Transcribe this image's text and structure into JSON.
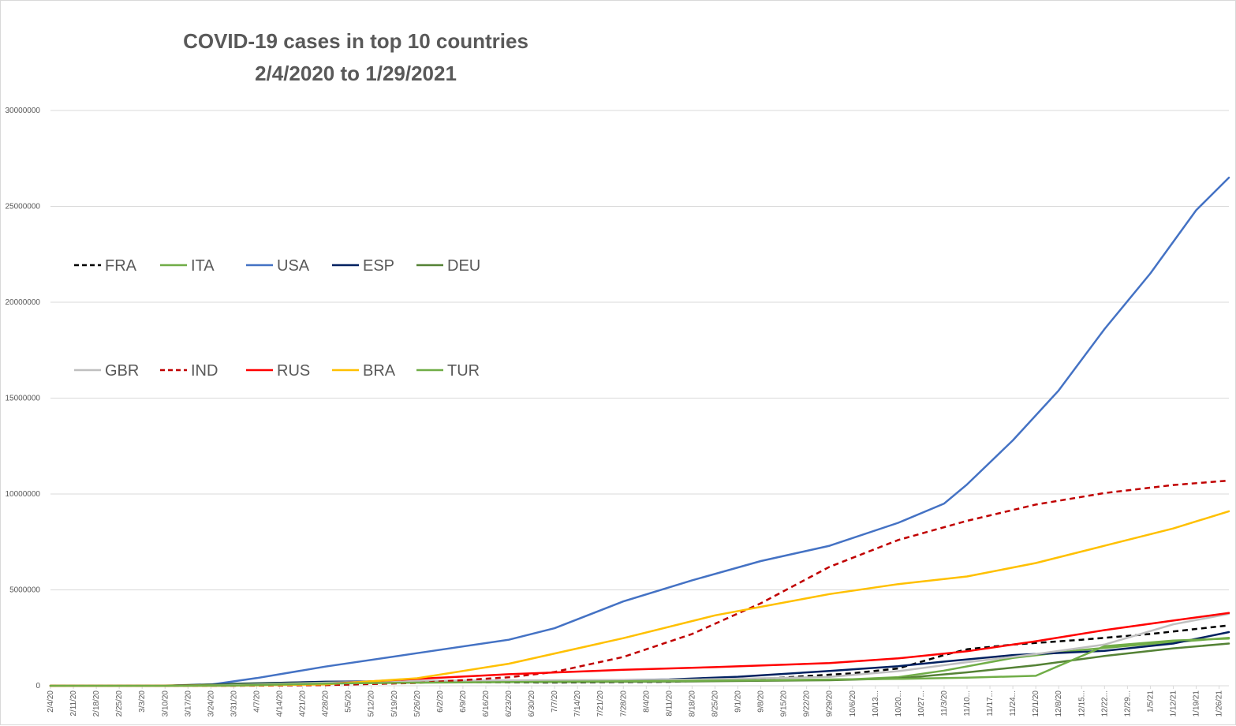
{
  "chart_data": {
    "type": "line",
    "title": [
      "COVID-19 cases in top 10 countries",
      "2/4/2020 to 1/29/2021"
    ],
    "xlabel": "",
    "ylabel": "",
    "ylim": [
      0,
      30000000
    ],
    "y_ticks": [
      0,
      5000000,
      10000000,
      15000000,
      20000000,
      25000000,
      30000000
    ],
    "y_tick_labels": [
      "0",
      "5000000",
      "10000000",
      "15000000",
      "20000000",
      "25000000",
      "30000000"
    ],
    "grid": "horizontal",
    "x_start": "2/4/20",
    "x_end": "1/29/21",
    "x_tick_labels": [
      "2/4/20",
      "2/11/20",
      "2/18/20",
      "2/25/20",
      "3/3/20",
      "3/10/20",
      "3/17/20",
      "3/24/20",
      "3/31/20",
      "4/7/20",
      "4/14/20",
      "4/21/20",
      "4/28/20",
      "5/5/20",
      "5/12/20",
      "5/19/20",
      "5/26/20",
      "6/2/20",
      "6/9/20",
      "6/16/20",
      "6/23/20",
      "6/30/20",
      "7/7/20",
      "7/14/20",
      "7/21/20",
      "7/28/20",
      "8/4/20",
      "8/11/20",
      "8/18/20",
      "8/25/20",
      "9/1/20",
      "9/8/20",
      "9/15/20",
      "9/22/20",
      "9/29/20",
      "10/6/20",
      "10/13...",
      "10/20...",
      "10/27...",
      "11/3/20",
      "11/10...",
      "11/17...",
      "11/24...",
      "12/1/20",
      "12/8/20",
      "12/15...",
      "12/22...",
      "12/29...",
      "1/5/21",
      "1/12/21",
      "1/19/21",
      "1/26/21"
    ],
    "legend_placement": "left, two rows",
    "legend_rows": [
      [
        "FRA",
        "ITA",
        "USA",
        "ESP",
        "DEU"
      ],
      [
        "GBR",
        "IND",
        "RUS",
        "BRA",
        "TUR"
      ]
    ],
    "series": [
      {
        "name": "FRA",
        "color": "#000000",
        "dashed": true,
        "x": [
          "2/4/20",
          "3/10/20",
          "3/31/20",
          "4/28/20",
          "6/2/20",
          "7/7/20",
          "8/11/20",
          "9/8/20",
          "10/6/20",
          "10/20/20",
          "11/3/20",
          "11/10/20",
          "11/24/20",
          "12/15/20",
          "1/5/21",
          "1/29/21"
        ],
        "values": [
          0,
          1800,
          52000,
          169000,
          189000,
          170000,
          205000,
          360000,
          650000,
          900000,
          1600000,
          1900000,
          2150000,
          2400000,
          2700000,
          3150000
        ]
      },
      {
        "name": "ITA",
        "color": "#70ad47",
        "dashed": false,
        "x": [
          "2/4/20",
          "2/25/20",
          "3/10/20",
          "3/31/20",
          "4/28/20",
          "5/26/20",
          "6/30/20",
          "8/4/20",
          "9/8/20",
          "10/6/20",
          "10/20/20",
          "11/3/20",
          "11/24/20",
          "12/15/20",
          "1/5/21",
          "1/29/21"
        ],
        "values": [
          0,
          300,
          10000,
          106000,
          201000,
          231000,
          241000,
          249000,
          280000,
          336000,
          450000,
          790000,
          1450000,
          1870000,
          2180000,
          2500000
        ]
      },
      {
        "name": "USA",
        "color": "#4472c4",
        "dashed": false,
        "x": [
          "2/4/20",
          "3/10/20",
          "3/24/20",
          "4/7/20",
          "4/28/20",
          "5/26/20",
          "6/23/20",
          "7/7/20",
          "7/28/20",
          "8/18/20",
          "9/8/20",
          "9/29/20",
          "10/20/20",
          "11/3/20",
          "11/10/20",
          "11/24/20",
          "12/8/20",
          "12/22/20",
          "1/5/21",
          "1/19/21",
          "1/29/21"
        ],
        "values": [
          11,
          1000,
          60000,
          400000,
          1000000,
          1700000,
          2400000,
          3000000,
          4400000,
          5500000,
          6500000,
          7300000,
          8500000,
          9500000,
          10500000,
          12800000,
          15400000,
          18600000,
          21500000,
          24800000,
          26500000
        ]
      },
      {
        "name": "ESP",
        "color": "#002060",
        "dashed": false,
        "x": [
          "2/4/20",
          "3/10/20",
          "3/31/20",
          "4/28/20",
          "5/26/20",
          "7/7/20",
          "8/11/20",
          "9/1/20",
          "9/29/20",
          "10/20/20",
          "11/3/20",
          "11/24/20",
          "12/22/20",
          "1/12/21",
          "1/29/21"
        ],
        "values": [
          0,
          1700,
          95000,
          210000,
          237000,
          252000,
          330000,
          470000,
          770000,
          1020000,
          1260000,
          1600000,
          1820000,
          2200000,
          2800000
        ]
      },
      {
        "name": "DEU",
        "color": "#548235",
        "dashed": false,
        "x": [
          "2/4/20",
          "3/10/20",
          "3/31/20",
          "4/28/20",
          "5/26/20",
          "7/7/20",
          "8/18/20",
          "9/29/20",
          "10/20/20",
          "11/10/20",
          "12/1/20",
          "12/22/20",
          "1/12/21",
          "1/29/21"
        ],
        "values": [
          12,
          1200,
          70000,
          160000,
          180000,
          197000,
          228000,
          290000,
          380000,
          700000,
          1070000,
          1550000,
          1950000,
          2200000
        ]
      },
      {
        "name": "GBR",
        "color": "#bfbfbf",
        "dashed": false,
        "x": [
          "2/4/20",
          "3/10/20",
          "3/31/20",
          "4/28/20",
          "5/26/20",
          "7/7/20",
          "8/18/20",
          "9/29/20",
          "10/20/20",
          "11/10/20",
          "12/1/20",
          "12/22/20",
          "1/12/21",
          "1/29/21"
        ],
        "values": [
          2,
          370,
          25000,
          160000,
          265000,
          287000,
          320000,
          460000,
          760000,
          1230000,
          1650000,
          2150000,
          3200000,
          3750000
        ]
      },
      {
        "name": "IND",
        "color": "#c00000",
        "dashed": true,
        "x": [
          "2/4/20",
          "3/31/20",
          "4/28/20",
          "5/26/20",
          "6/23/20",
          "7/7/20",
          "7/28/20",
          "8/18/20",
          "9/8/20",
          "9/29/20",
          "10/20/20",
          "11/10/20",
          "12/1/20",
          "12/22/20",
          "1/12/21",
          "1/29/21"
        ],
        "values": [
          3,
          1400,
          31000,
          150000,
          440000,
          720000,
          1500000,
          2700000,
          4300000,
          6200000,
          7600000,
          8600000,
          9450000,
          10050000,
          10470000,
          10700000
        ]
      },
      {
        "name": "RUS",
        "color": "#ff0000",
        "dashed": false,
        "x": [
          "2/4/20",
          "3/31/20",
          "4/28/20",
          "5/26/20",
          "6/23/20",
          "7/28/20",
          "8/25/20",
          "9/29/20",
          "10/20/20",
          "11/10/20",
          "12/1/20",
          "12/22/20",
          "1/12/21",
          "1/29/21"
        ],
        "values": [
          2,
          2300,
          93000,
          362000,
          600000,
          830000,
          970000,
          1180000,
          1430000,
          1800000,
          2320000,
          2900000,
          3400000,
          3800000
        ]
      },
      {
        "name": "BRA",
        "color": "#ffc000",
        "dashed": false,
        "x": [
          "2/4/20",
          "3/17/20",
          "3/31/20",
          "4/28/20",
          "5/26/20",
          "6/23/20",
          "7/28/20",
          "8/25/20",
          "9/29/20",
          "10/20/20",
          "11/10/20",
          "12/1/20",
          "12/22/20",
          "1/12/21",
          "1/29/21"
        ],
        "values": [
          0,
          300,
          5700,
          73000,
          390000,
          1150000,
          2480000,
          3670000,
          4780000,
          5300000,
          5700000,
          6400000,
          7300000,
          8200000,
          9100000
        ]
      },
      {
        "name": "TUR",
        "color": "#70ad47",
        "dashed": false,
        "x": [
          "2/4/20",
          "3/17/20",
          "3/31/20",
          "4/28/20",
          "5/26/20",
          "7/7/20",
          "8/18/20",
          "9/29/20",
          "10/20/20",
          "11/10/20",
          "12/1/20",
          "12/22/20",
          "1/12/21",
          "1/29/21"
        ],
        "values": [
          0,
          100,
          14000,
          115000,
          160000,
          210000,
          255000,
          325000,
          360000,
          420000,
          520000,
          2060000,
          2360000,
          2460000
        ]
      }
    ]
  }
}
